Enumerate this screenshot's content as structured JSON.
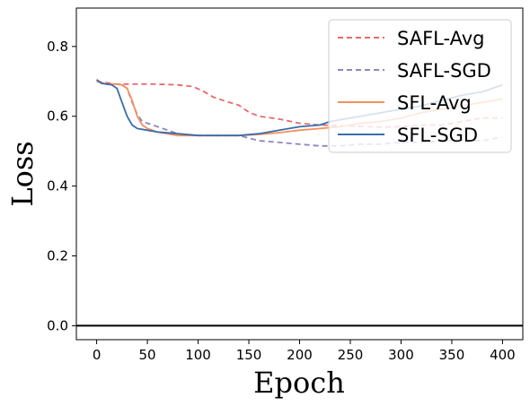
{
  "chart_data": {
    "type": "line",
    "xlabel": "Epoch",
    "ylabel": "Loss",
    "xlim": [
      -20,
      420
    ],
    "ylim": [
      -0.04,
      0.91
    ],
    "xticks": [
      0,
      50,
      100,
      150,
      200,
      250,
      300,
      350,
      400
    ],
    "yticks": [
      0.0,
      0.2,
      0.4,
      0.6,
      0.8
    ],
    "ytick_labels": [
      "0.0",
      "0.2",
      "0.4",
      "0.6",
      "0.8"
    ],
    "hline": 0.0,
    "legend_position": "top-right",
    "grid": false,
    "series": [
      {
        "name": "SAFL-Avg",
        "color": "#e8686a",
        "dash": "dashed",
        "x": [
          0,
          20,
          40,
          60,
          80,
          95,
          105,
          115,
          125,
          140,
          150,
          160,
          180,
          200,
          220,
          250,
          280,
          300,
          320,
          340,
          360,
          380,
          400
        ],
        "y": [
          0.7,
          0.692,
          0.692,
          0.692,
          0.69,
          0.685,
          0.672,
          0.655,
          0.645,
          0.632,
          0.612,
          0.6,
          0.592,
          0.58,
          0.575,
          0.572,
          0.569,
          0.57,
          0.575,
          0.575,
          0.585,
          0.595,
          0.595
        ]
      },
      {
        "name": "SAFL-SGD",
        "color": "#8e86bd",
        "dash": "dashed",
        "x": [
          0,
          10,
          20,
          25,
          30,
          35,
          40,
          45,
          50,
          60,
          70,
          80,
          100,
          120,
          140,
          160,
          180,
          200,
          220,
          240,
          260,
          280,
          300,
          320,
          340,
          360,
          380,
          400
        ],
        "y": [
          0.7,
          0.692,
          0.692,
          0.69,
          0.68,
          0.64,
          0.605,
          0.585,
          0.58,
          0.57,
          0.56,
          0.55,
          0.545,
          0.545,
          0.545,
          0.53,
          0.525,
          0.52,
          0.515,
          0.515,
          0.52,
          0.52,
          0.525,
          0.525,
          0.53,
          0.53,
          0.53,
          0.54
        ]
      },
      {
        "name": "SFL-Avg",
        "color": "#f4905c",
        "dash": "solid",
        "x": [
          0,
          10,
          20,
          25,
          30,
          35,
          40,
          45,
          50,
          60,
          70,
          80,
          100,
          120,
          140,
          160,
          180,
          200,
          220,
          240,
          260,
          280,
          300,
          320,
          340,
          360,
          380,
          400
        ],
        "y": [
          0.7,
          0.692,
          0.692,
          0.69,
          0.68,
          0.645,
          0.6,
          0.575,
          0.565,
          0.555,
          0.55,
          0.545,
          0.545,
          0.545,
          0.545,
          0.548,
          0.553,
          0.56,
          0.565,
          0.57,
          0.58,
          0.585,
          0.595,
          0.61,
          0.62,
          0.63,
          0.64,
          0.65
        ]
      },
      {
        "name": "SFL-SGD",
        "color": "#3c6ca8",
        "dash": "solid",
        "x": [
          0,
          5,
          10,
          15,
          20,
          25,
          30,
          35,
          40,
          50,
          60,
          80,
          100,
          120,
          140,
          160,
          180,
          200,
          220,
          230,
          240,
          260,
          280,
          300,
          320,
          340,
          360,
          380,
          400
        ],
        "y": [
          0.705,
          0.694,
          0.692,
          0.69,
          0.68,
          0.64,
          0.6,
          0.575,
          0.565,
          0.56,
          0.555,
          0.55,
          0.545,
          0.545,
          0.545,
          0.55,
          0.56,
          0.57,
          0.575,
          0.585,
          0.59,
          0.6,
          0.61,
          0.62,
          0.63,
          0.645,
          0.66,
          0.67,
          0.69
        ]
      }
    ]
  }
}
